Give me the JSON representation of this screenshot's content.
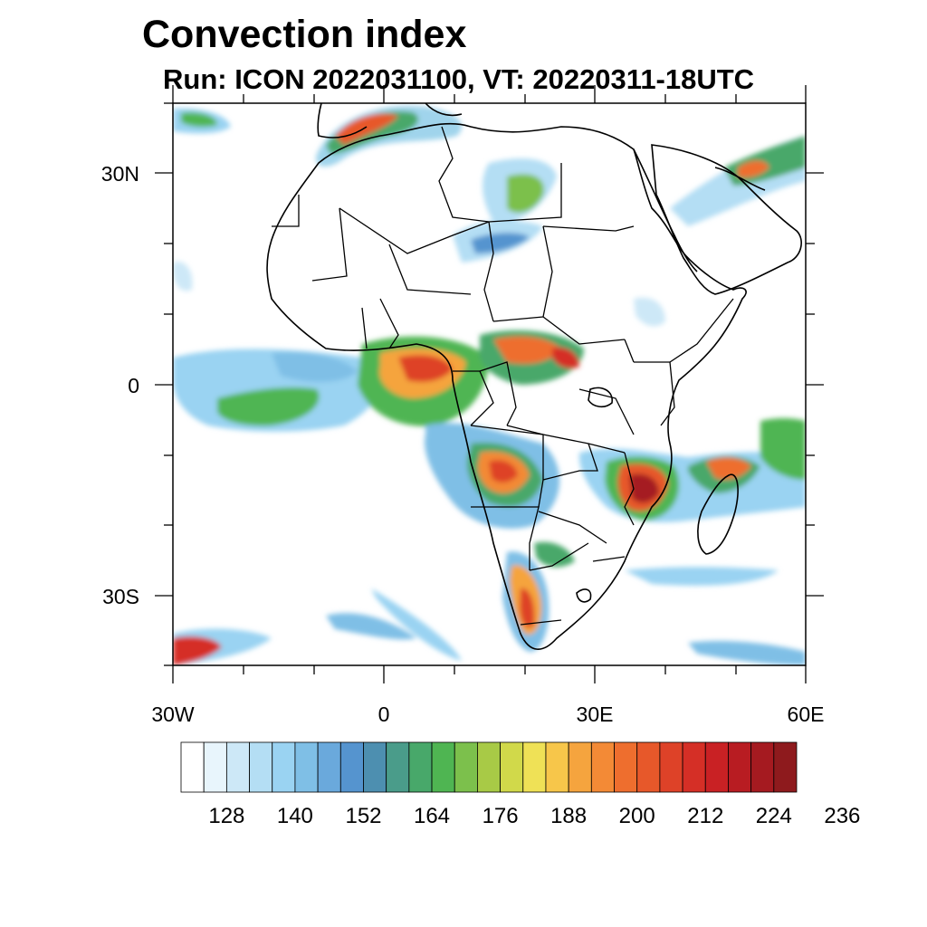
{
  "title": "Convection index",
  "subtitle": "Run: ICON 2022031100,  VT: 20220311-18UTC",
  "map": {
    "lon_range": [
      -30,
      60
    ],
    "lat_range": [
      -40,
      40
    ],
    "lat_ticks": [
      "30N",
      "0",
      "30S"
    ],
    "lon_ticks": [
      "30W",
      "0",
      "30E",
      "60E"
    ],
    "field": "Convection index"
  },
  "colorbar": {
    "labels": [
      "128",
      "140",
      "152",
      "164",
      "176",
      "188",
      "200",
      "212",
      "224",
      "236"
    ],
    "colors": [
      "#ffffff",
      "#e8f5fc",
      "#cde8f7",
      "#b4def4",
      "#9ad3f2",
      "#7fbfe6",
      "#6aa9dc",
      "#5594cf",
      "#4d8fb0",
      "#4a9c8a",
      "#48a86a",
      "#4fb552",
      "#7cc04c",
      "#a8ca46",
      "#d1d94a",
      "#efe156",
      "#f7c64a",
      "#f5a43e",
      "#f38a36",
      "#ee6e2e",
      "#e7582a",
      "#de4228",
      "#d52f26",
      "#c92124",
      "#b81c22",
      "#a51a20",
      "#8e1a1d"
    ]
  }
}
